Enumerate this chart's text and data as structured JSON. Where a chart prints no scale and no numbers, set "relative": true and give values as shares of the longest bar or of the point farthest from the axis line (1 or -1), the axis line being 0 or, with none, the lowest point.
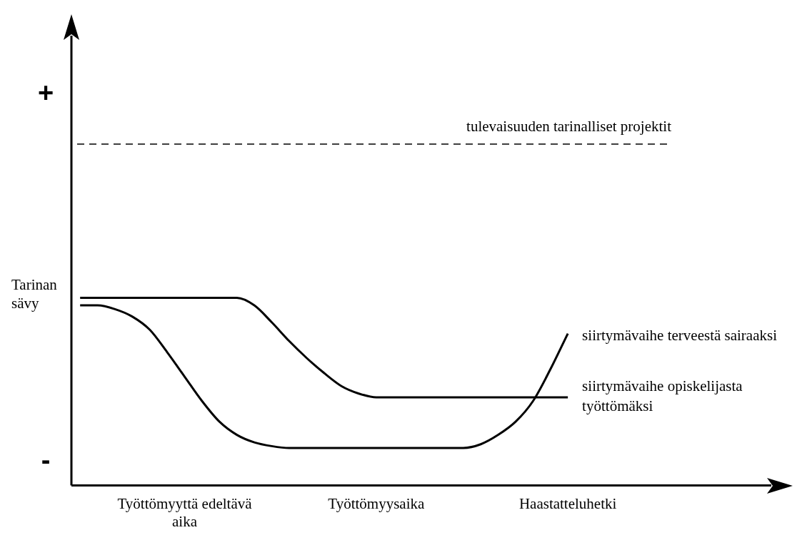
{
  "chart_data": {
    "type": "line",
    "relative": true,
    "ylabel": "Tarinan sävy",
    "categories": [
      null,
      null,
      null,
      null,
      null,
      null,
      "Työttömyyttä edeltävä aika",
      null,
      null,
      null,
      null,
      null,
      null,
      null,
      null,
      null,
      null,
      "Työttömyysaika",
      null,
      null,
      null,
      null,
      null,
      null,
      null,
      null,
      null,
      null,
      "Haastatteluhetki",
      null,
      null,
      null,
      null,
      null,
      null,
      null,
      null,
      null,
      null,
      null,
      null
    ],
    "series": [
      {
        "name": "siirtymävaihe terveestä sairaaksi",
        "color": "#000000",
        "values": [
          0.96,
          0.96,
          0.94,
          0.9,
          0.83,
          0.71,
          0.58,
          0.45,
          0.34,
          0.27,
          0.23,
          0.21,
          0.2,
          0.2,
          0.2,
          0.2,
          0.2,
          0.2,
          0.2,
          0.2,
          0.2,
          0.2,
          0.2,
          0.22,
          0.27,
          0.34,
          0.45,
          0.62,
          0.81,
          null,
          null,
          null,
          null,
          null,
          null,
          null,
          null,
          null,
          null,
          null,
          null
        ]
      },
      {
        "name": "siirtymävaihe opiskelijasta työttömäksi",
        "color": "#000000",
        "values": [
          1.0,
          1.0,
          1.0,
          1.0,
          1.0,
          1.0,
          1.0,
          1.0,
          1.0,
          1.0,
          0.96,
          0.87,
          0.77,
          0.68,
          0.6,
          0.53,
          0.49,
          0.47,
          0.47,
          0.47,
          0.47,
          0.47,
          0.47,
          0.47,
          0.47,
          0.47,
          0.47,
          0.47,
          0.47,
          null,
          null,
          null,
          null,
          null,
          null,
          null,
          null,
          null,
          null,
          null,
          null
        ]
      }
    ],
    "ref_lines": [
      {
        "axis": "y",
        "value": 1.82,
        "label": "tulevaisuuden tarinalliset projektit",
        "color": "#000000",
        "line_style": "dashed"
      }
    ],
    "annotations": [
      "+",
      "-"
    ],
    "grid": false,
    "legend": false
  }
}
